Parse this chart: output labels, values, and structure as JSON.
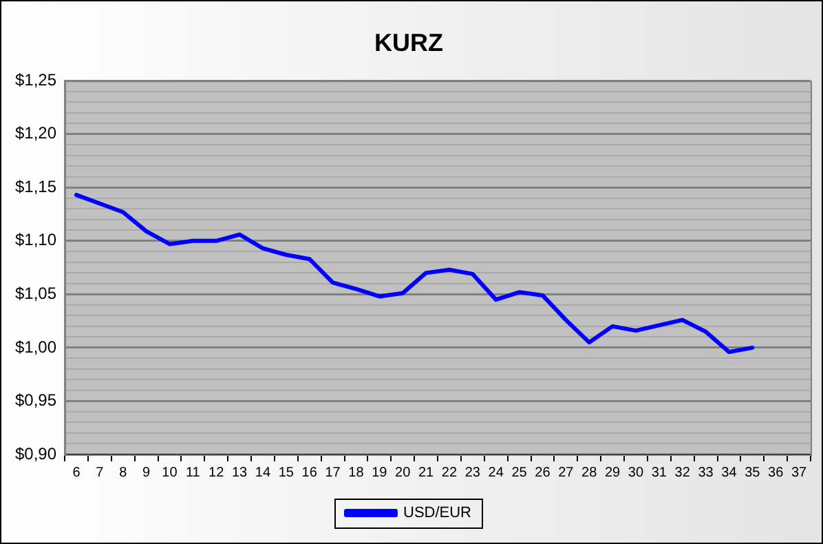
{
  "chart_data": {
    "type": "line",
    "title": "KURZ",
    "categories": [
      "6",
      "7",
      "8",
      "9",
      "10",
      "11",
      "12",
      "13",
      "14",
      "15",
      "16",
      "17",
      "18",
      "19",
      "20",
      "21",
      "22",
      "23",
      "24",
      "25",
      "26",
      "27",
      "28",
      "29",
      "30",
      "31",
      "32",
      "33",
      "34",
      "35",
      "36",
      "37"
    ],
    "series": [
      {
        "name": "USD/EUR",
        "color": "#0000ff",
        "values": [
          1.143,
          1.135,
          1.127,
          1.109,
          1.097,
          1.1,
          1.1,
          1.106,
          1.093,
          1.087,
          1.083,
          1.061,
          1.055,
          1.048,
          1.051,
          1.07,
          1.073,
          1.069,
          1.045,
          1.052,
          1.049,
          1.026,
          1.005,
          1.02,
          1.016,
          1.021,
          1.026,
          1.015,
          0.996,
          1.0,
          null,
          null
        ]
      }
    ],
    "ylim": [
      0.9,
      1.25
    ],
    "yticks": [
      {
        "value": 0.9,
        "label": "$0,90"
      },
      {
        "value": 0.91,
        "label": null
      },
      {
        "value": 0.92,
        "label": null
      },
      {
        "value": 0.93,
        "label": null
      },
      {
        "value": 0.94,
        "label": null
      },
      {
        "value": 0.95,
        "label": "$0,95"
      },
      {
        "value": 0.96,
        "label": null
      },
      {
        "value": 0.97,
        "label": null
      },
      {
        "value": 0.98,
        "label": null
      },
      {
        "value": 0.99,
        "label": null
      },
      {
        "value": 1.0,
        "label": "$1,00"
      },
      {
        "value": 1.01,
        "label": null
      },
      {
        "value": 1.02,
        "label": null
      },
      {
        "value": 1.03,
        "label": null
      },
      {
        "value": 1.04,
        "label": null
      },
      {
        "value": 1.05,
        "label": "$1,05"
      },
      {
        "value": 1.06,
        "label": null
      },
      {
        "value": 1.07,
        "label": null
      },
      {
        "value": 1.08,
        "label": null
      },
      {
        "value": 1.09,
        "label": null
      },
      {
        "value": 1.1,
        "label": "$1,10"
      },
      {
        "value": 1.11,
        "label": null
      },
      {
        "value": 1.12,
        "label": null
      },
      {
        "value": 1.13,
        "label": null
      },
      {
        "value": 1.14,
        "label": null
      },
      {
        "value": 1.15,
        "label": "$1,15"
      },
      {
        "value": 1.16,
        "label": null
      },
      {
        "value": 1.17,
        "label": null
      },
      {
        "value": 1.18,
        "label": null
      },
      {
        "value": 1.19,
        "label": null
      },
      {
        "value": 1.2,
        "label": "$1,20"
      },
      {
        "value": 1.21,
        "label": null
      },
      {
        "value": 1.22,
        "label": null
      },
      {
        "value": 1.23,
        "label": null
      },
      {
        "value": 1.24,
        "label": null
      },
      {
        "value": 1.25,
        "label": "$1,25"
      }
    ],
    "grid": "y",
    "legend": "bottom",
    "marker": "none",
    "line_style": "solid"
  }
}
